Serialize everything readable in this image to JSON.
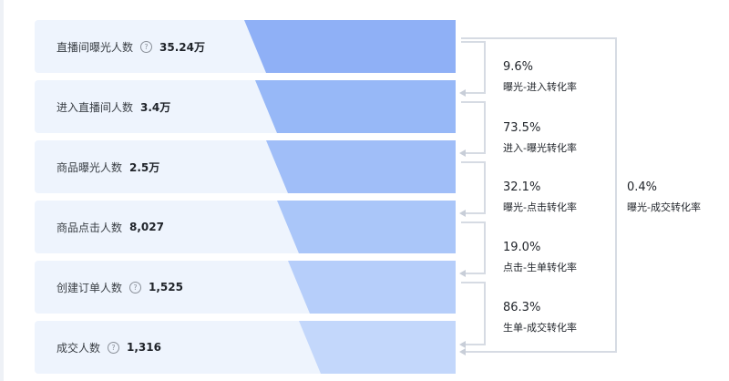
{
  "funnel": {
    "colors": {
      "top": "#8fb1f6",
      "bottom": "#c7dafb",
      "rowBg": "#eef4fd",
      "bracket": "#d8dde5"
    },
    "stages": [
      {
        "label": "直播间曝光人数",
        "value": "35.24万",
        "hasInfo": true
      },
      {
        "label": "进入直播间人数",
        "value": "3.4万",
        "hasInfo": false
      },
      {
        "label": "商品曝光人数",
        "value": "2.5万",
        "hasInfo": false
      },
      {
        "label": "商品点击人数",
        "value": "8,027",
        "hasInfo": false
      },
      {
        "label": "创建订单人数",
        "value": "1,525",
        "hasInfo": true
      },
      {
        "label": "成交人数",
        "value": "1,316",
        "hasInfo": true
      }
    ],
    "rates": [
      {
        "pct": "9.6%",
        "name": "曝光-进入转化率"
      },
      {
        "pct": "73.5%",
        "name": "进入-曝光转化率"
      },
      {
        "pct": "32.1%",
        "name": "曝光-点击转化率"
      },
      {
        "pct": "19.0%",
        "name": "点击-生单转化率"
      },
      {
        "pct": "86.3%",
        "name": "生单-成交转化率"
      }
    ],
    "overall": {
      "pct": "0.4%",
      "name": "曝光-成交转化率"
    },
    "info_glyph": "?"
  }
}
